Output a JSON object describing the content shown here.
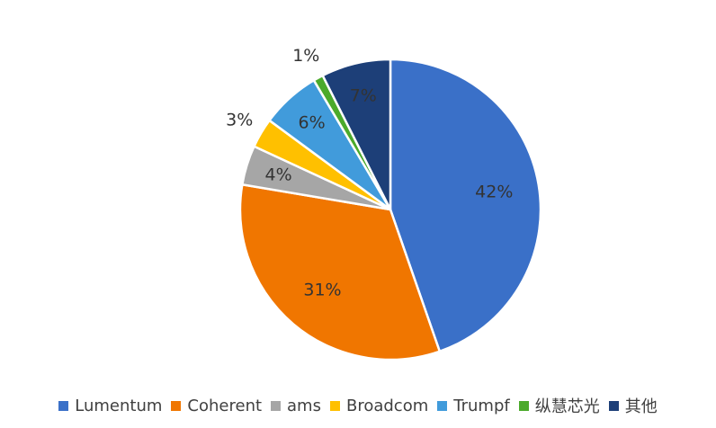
{
  "chart_data": {
    "type": "pie",
    "title": "",
    "categories": [
      "Lumentum",
      "Coherent",
      "ams",
      "Broadcom",
      "Trumpf",
      "纵慧芯光",
      "其他"
    ],
    "values": [
      42,
      31,
      4,
      3,
      6,
      1,
      7
    ],
    "labels": [
      "42%",
      "31%",
      "4%",
      "3%",
      "6%",
      "1%",
      "7%"
    ],
    "colors": [
      "#3A70C8",
      "#F07600",
      "#A6A6A6",
      "#FFC000",
      "#419BDB",
      "#4BAA2B",
      "#1D3F78"
    ],
    "legend_position": "bottom"
  }
}
